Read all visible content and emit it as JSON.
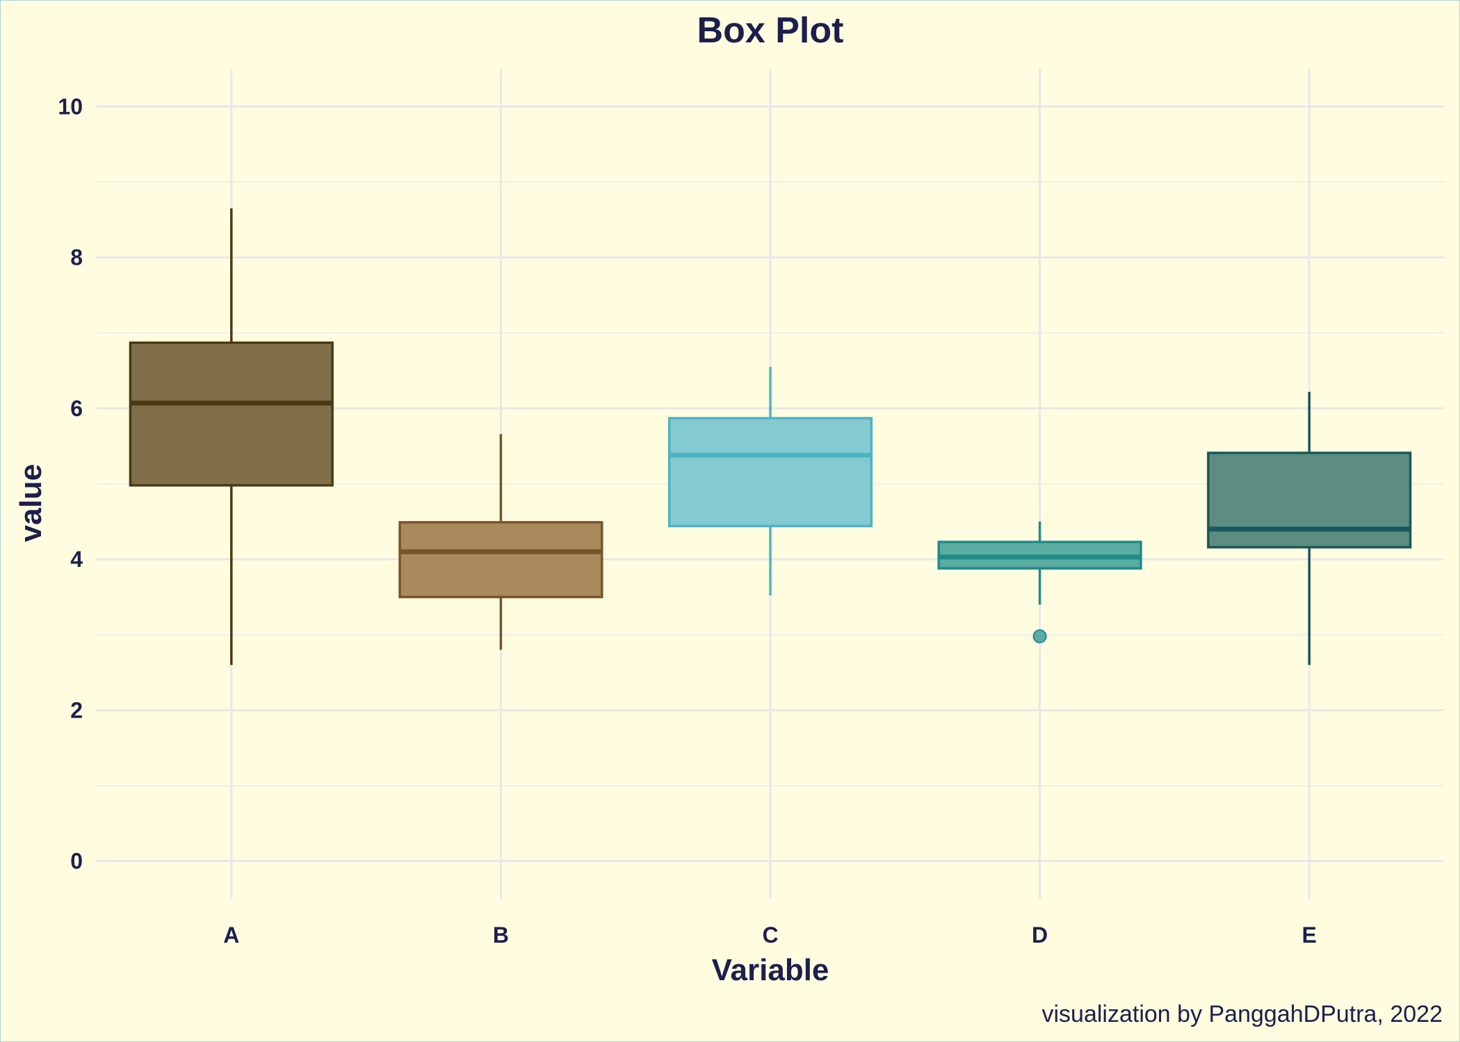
{
  "chart_data": {
    "type": "box",
    "title": "Box Plot",
    "xlabel": "Variable",
    "ylabel": "value",
    "ylim": [
      -0.5,
      10.5
    ],
    "yticks": [
      0,
      2,
      4,
      6,
      8,
      10
    ],
    "yticks_minor": [
      1,
      3,
      5,
      7,
      9
    ],
    "grid": true,
    "categories": [
      "A",
      "B",
      "C",
      "D",
      "E"
    ],
    "boxes": [
      {
        "name": "A",
        "whisker_low": 2.6,
        "q1": 4.98,
        "median": 6.07,
        "q3": 6.87,
        "whisker_high": 8.65,
        "outliers": [],
        "fill": "#806f48",
        "stroke": "#4a3a14"
      },
      {
        "name": "B",
        "whisker_low": 2.8,
        "q1": 3.5,
        "median": 4.1,
        "q3": 4.49,
        "whisker_high": 5.66,
        "outliers": [],
        "fill": "#a88a5d",
        "stroke": "#7a5428"
      },
      {
        "name": "C",
        "whisker_low": 3.52,
        "q1": 4.44,
        "median": 5.38,
        "q3": 5.87,
        "whisker_high": 6.55,
        "outliers": [],
        "fill": "#84cad1",
        "stroke": "#4eb3c5"
      },
      {
        "name": "D",
        "whisker_low": 3.4,
        "q1": 3.88,
        "median": 4.03,
        "q3": 4.23,
        "whisker_high": 4.5,
        "outliers": [
          2.98
        ],
        "fill": "#5bada1",
        "stroke": "#1f8b8c"
      },
      {
        "name": "E",
        "whisker_low": 2.6,
        "q1": 4.16,
        "median": 4.4,
        "q3": 5.41,
        "whisker_high": 6.22,
        "outliers": [],
        "fill": "#5d8d80",
        "stroke": "#18585a"
      }
    ],
    "caption": "visualization by PanggahDPutra, 2022"
  }
}
